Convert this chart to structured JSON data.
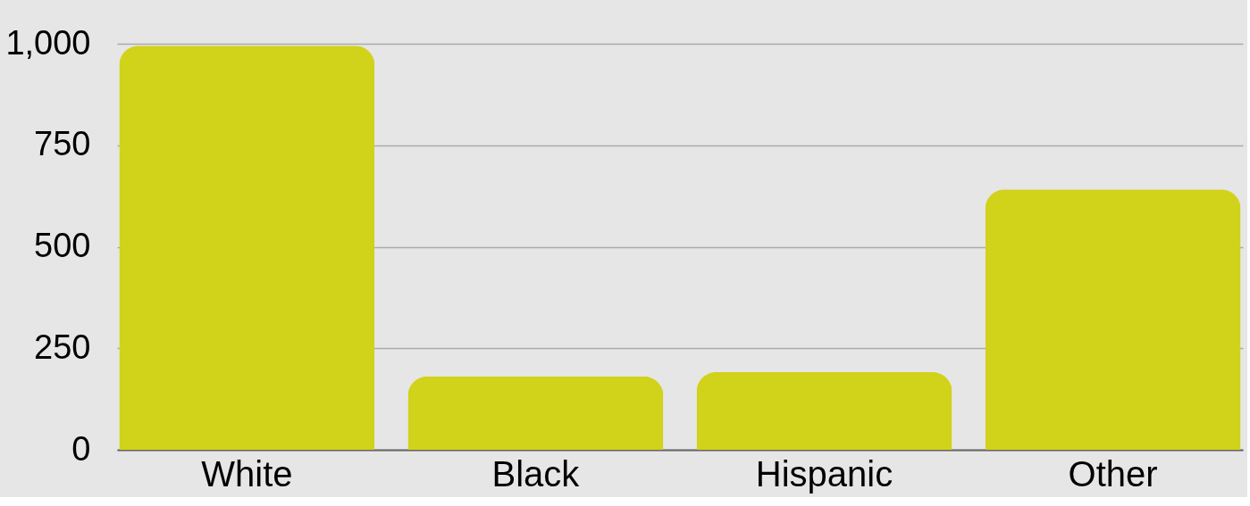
{
  "chart_data": {
    "type": "bar",
    "categories": [
      "White",
      "Black",
      "Hispanic",
      "Other"
    ],
    "values": [
      995,
      181,
      191,
      641
    ],
    "color": "#d1d21a",
    "ylim": [
      0,
      1000
    ],
    "yticks": [
      0,
      250,
      500,
      750,
      {
        "value": 1000,
        "label": "1,000"
      }
    ],
    "grid": "y"
  }
}
